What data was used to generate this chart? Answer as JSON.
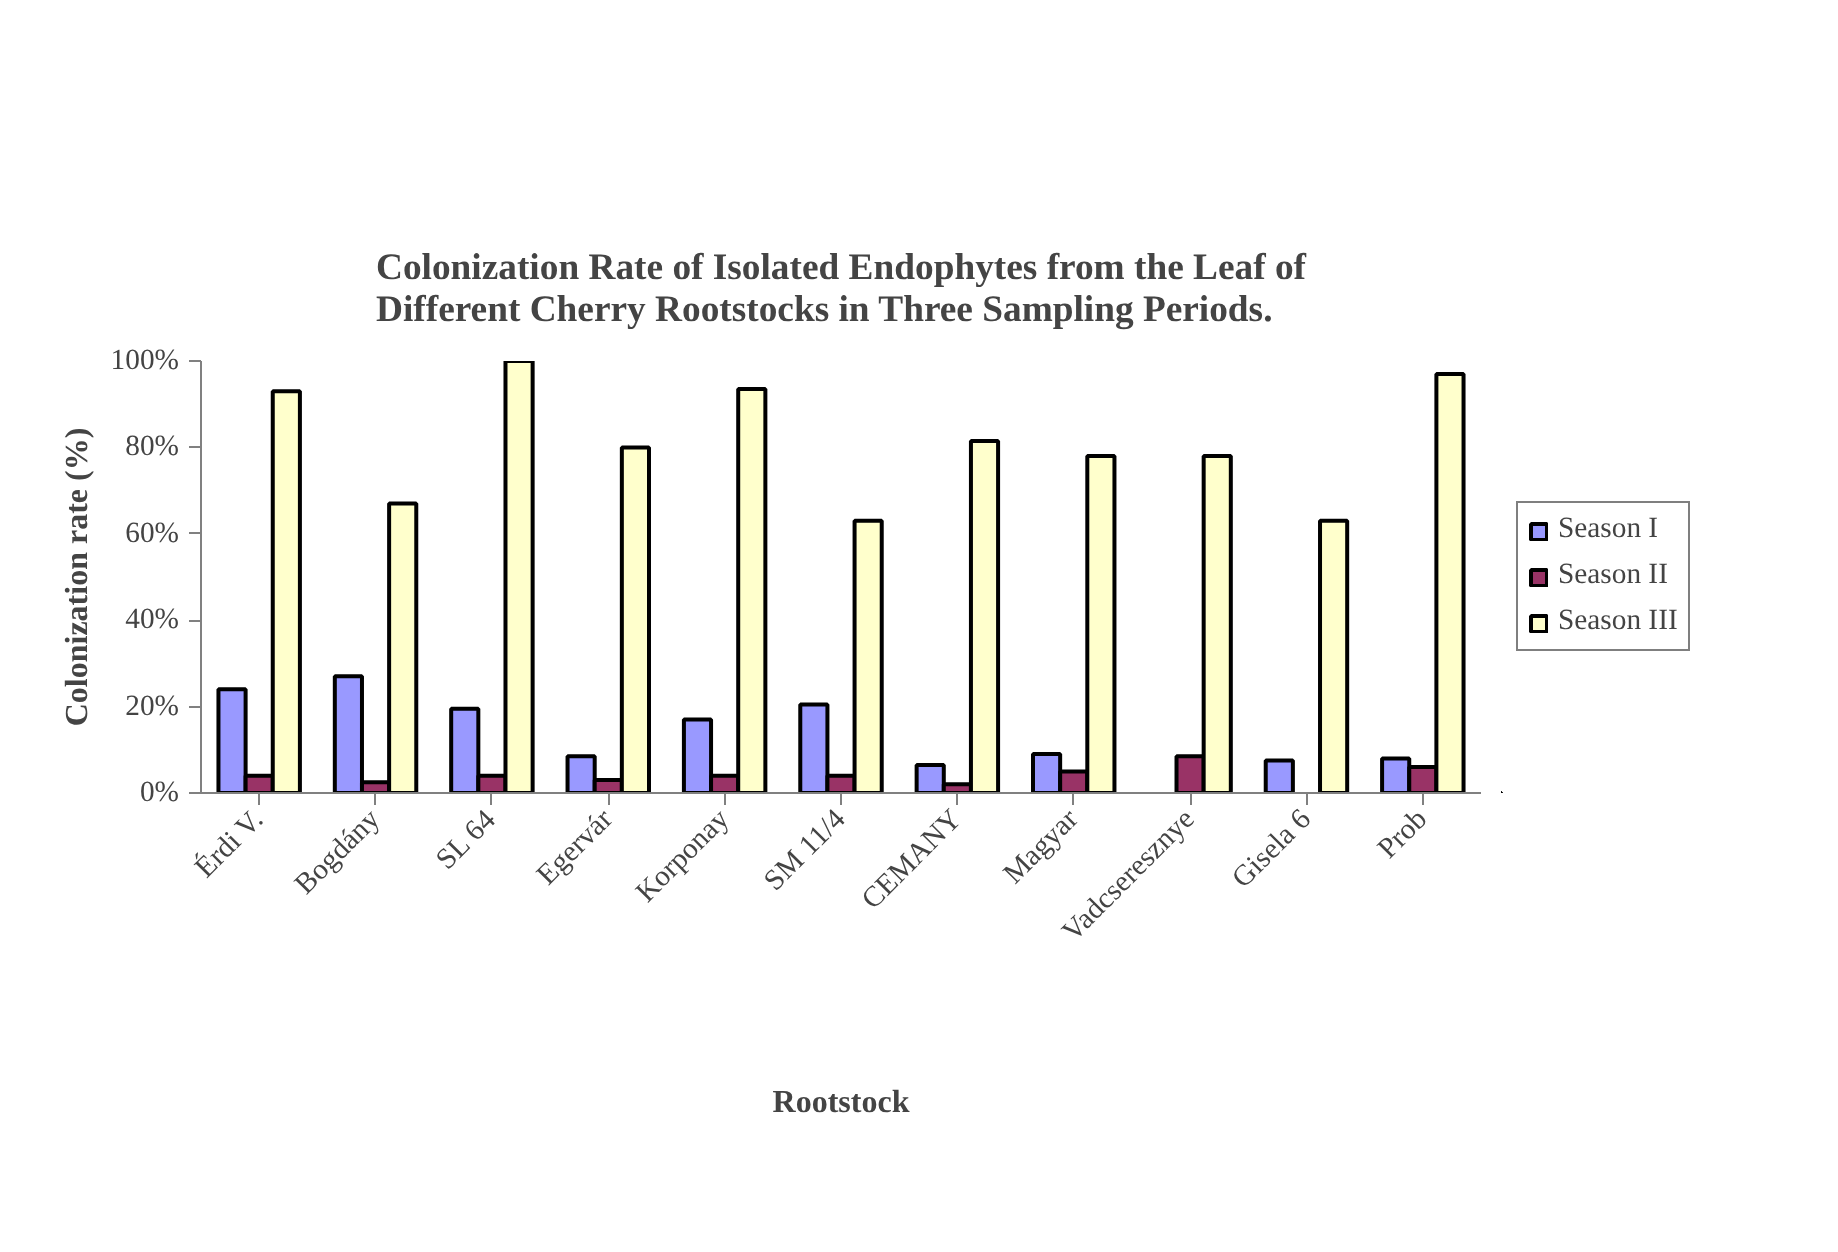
{
  "chart_data": {
    "type": "bar",
    "title": "Colonization Rate of Isolated Endophytes from the Leaf of\nDifferent Cherry Rootstocks in Three Sampling Periods.",
    "xlabel": "Rootstock",
    "ylabel": "Colonization rate (%)",
    "categories": [
      "Érdi V.",
      "Bogdány",
      "SL 64",
      "Egervár",
      "Korponay",
      "SM 11/4",
      "CEMANY",
      "Magyar",
      "Vadcseresznye",
      "Gisela 6",
      "Prob"
    ],
    "series": [
      {
        "name": "Season I",
        "color": "#9999ff",
        "values": [
          24,
          27,
          19.5,
          8.5,
          17,
          20.5,
          6.5,
          9,
          null,
          7.5,
          8
        ]
      },
      {
        "name": "Season II",
        "color": "#993366",
        "values": [
          4,
          2.5,
          4,
          3,
          4,
          4,
          2,
          5,
          8.5,
          null,
          6
        ]
      },
      {
        "name": "Season III",
        "color": "#ffffcc",
        "values": [
          93,
          67,
          100,
          80,
          93.5,
          63,
          81.5,
          78,
          78,
          63,
          97
        ]
      }
    ],
    "ylim": [
      0,
      100
    ],
    "yticks": [
      {
        "value": 0,
        "label": "0%"
      },
      {
        "value": 20,
        "label": "20%"
      },
      {
        "value": 40,
        "label": "40%"
      },
      {
        "value": 60,
        "label": "60%"
      },
      {
        "value": 80,
        "label": "80%"
      },
      {
        "value": 100,
        "label": "100%"
      }
    ],
    "grid": false,
    "legend": "right"
  }
}
